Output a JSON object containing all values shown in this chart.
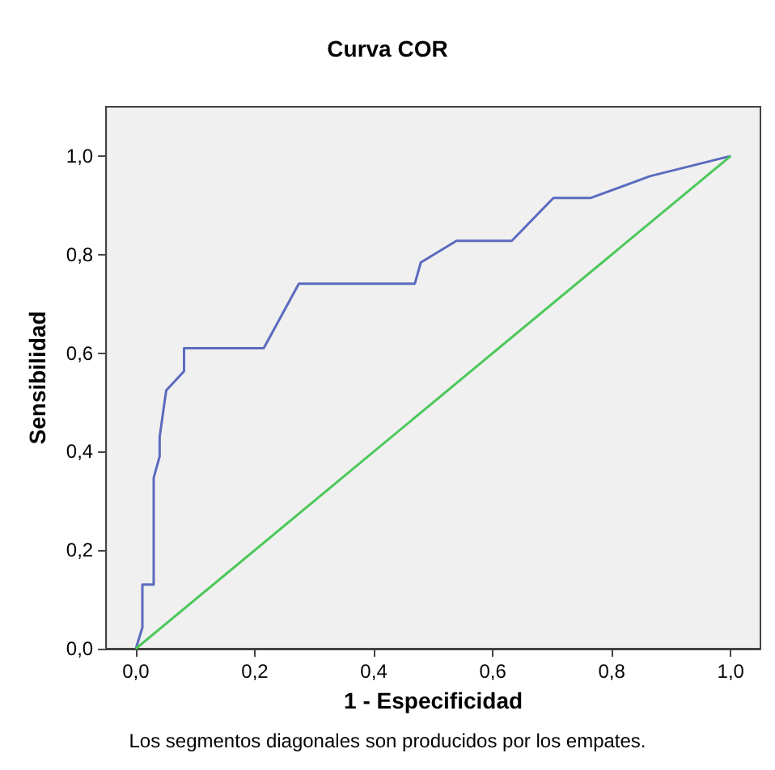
{
  "chart_data": {
    "type": "line",
    "title": "Curva COR",
    "xlabel": "1 - Especificidad",
    "ylabel": "Sensibilidad",
    "annotations": [
      "Los segmentos diagonales son producidos por los empates."
    ],
    "xlim": [
      -0.05,
      1.05
    ],
    "ylim": [
      0,
      1.1
    ],
    "xticks": [
      {
        "value": 0,
        "label": "0,0"
      },
      {
        "value": 0.2,
        "label": "0,2"
      },
      {
        "value": 0.4,
        "label": "0,4"
      },
      {
        "value": 0.6,
        "label": "0,6"
      },
      {
        "value": 0.8,
        "label": "0,8"
      },
      {
        "value": 1,
        "label": "1,0"
      }
    ],
    "yticks": [
      {
        "value": 0,
        "label": "0,0"
      },
      {
        "value": 0.2,
        "label": "0,2"
      },
      {
        "value": 0.4,
        "label": "0,4"
      },
      {
        "value": 0.6,
        "label": "0,6"
      },
      {
        "value": 0.8,
        "label": "0,8"
      },
      {
        "value": 1,
        "label": "1,0"
      }
    ],
    "series": [
      {
        "color": "#5b6bbf",
        "x": [
          0,
          0.011,
          0.011,
          0.03,
          0.03,
          0.04,
          0.04,
          0.051,
          0.081,
          0.081,
          0.215,
          0.274,
          0.469,
          0.479,
          0.539,
          0.632,
          0.702,
          0.765,
          0.864,
          1
        ],
        "values": [
          0,
          0.043,
          0.13,
          0.13,
          0.347,
          0.39,
          0.43,
          0.524,
          0.563,
          0.61,
          0.61,
          0.741,
          0.741,
          0.784,
          0.828,
          0.828,
          0.915,
          0.915,
          0.959,
          1
        ]
      },
      {
        "color": "#4cc85a",
        "x": [
          0,
          1
        ],
        "values": [
          0,
          1
        ]
      }
    ],
    "grid": false,
    "marker": "none",
    "line_style": "solid"
  }
}
